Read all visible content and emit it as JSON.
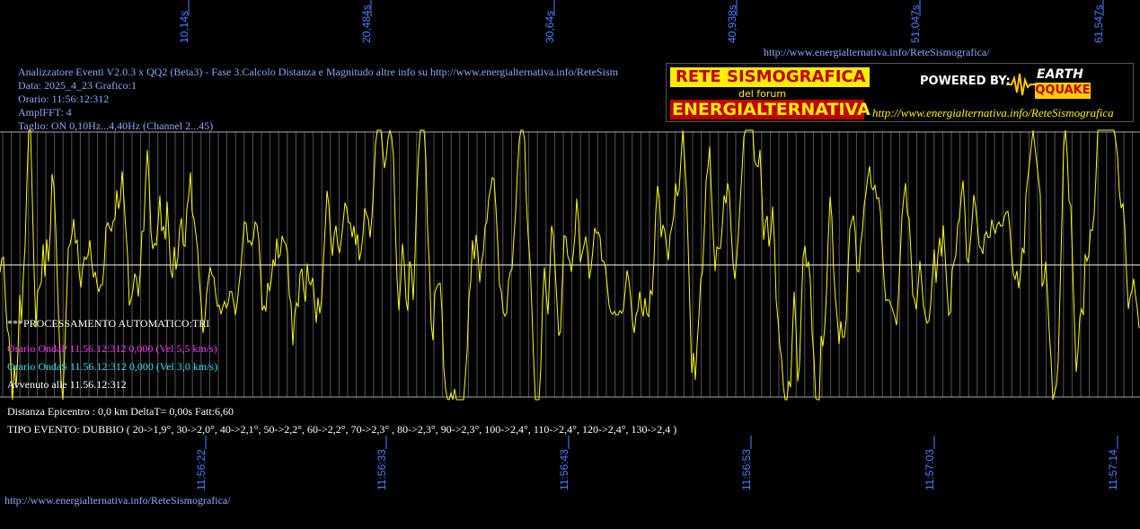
{
  "header": {
    "url_top": "http://www.energialternativa.info/ReteSismografica/",
    "info_lines": [
      "Analizzatore Eventi V2.0.3 x QQ2 (Beta3) - Fase 3.Calcolo Distanza e Magnitudo altre info su http://www.energialternativa.info/ReteSism",
      "Data: 2025_4_23 Grafico:1",
      "Orario: 11:56:12:312",
      "AmplFFT: 4",
      "Taglio: ON 0,10Hz...4,40Hz      (Channel 2...45)"
    ]
  },
  "logo": {
    "line1": "RETE SISMOGRAFICA",
    "line2": "del forum",
    "line3": "ENERGIALTERNATIVA",
    "powered": "POWERED BY:",
    "brand1": "EARTH",
    "brand2": "QQUAKE",
    "url": "http://www.energialternativa.info/ReteSismografica",
    "colors": {
      "yellow": "#ffee00",
      "red": "#c00000"
    }
  },
  "status": {
    "processing": "***PROCESSAMENTO AUTOMATICO:TRI",
    "onda_p": "Orario OndaP 11.56.12:312  0,000 (Vel 5,5 km/s)",
    "onda_s": "Orario OndaS 11.56.12:312  0,000 (Vel 3,0 km/s)",
    "avvenuto": "Avvenuto alle 11.56.12:312",
    "distanza": "Distanza Epicentro : 0,0 km DeltaT= 0,00s  Fatt:6,60",
    "tipo": "TIPO EVENTO: DUBBIO ( 20->1,9°, 30->2,0°, 40->2,1°, 50->2,2°, 60->2,2°, 70->2,3° , 80->2,3°, 90->2,3°, 100->2,4°, 110->2,4°, 120->2,4°, 130->2,4 )"
  },
  "footer": {
    "url": "http://www.energialternativa.info/ReteSismografica/"
  },
  "chart_data": {
    "type": "line",
    "series": [
      {
        "color": "#ffff00"
      }
    ],
    "top_ticks": [
      "10,14s",
      "20,484s",
      "30,64s",
      "40,938s",
      "51,047s",
      "61,547s"
    ],
    "bottom_ticks": [
      "11:56:22",
      "11:56:33",
      "11:56:43",
      "11:56:53",
      "11:57:03",
      "11:57:14"
    ],
    "duration_s": 63,
    "zero_line": true,
    "grid": "vertical",
    "colors": {
      "grid": "#555555",
      "frame": "#aaaaaa",
      "ticks": "#4d7fff",
      "trace": "#ffff00"
    }
  }
}
